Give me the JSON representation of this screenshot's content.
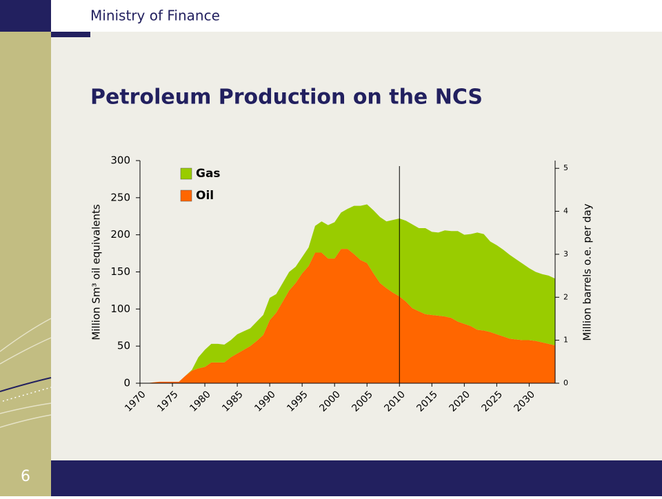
{
  "header": {
    "organization": "Ministry of Finance",
    "page_number": "6"
  },
  "chart_data": {
    "type": "stacked_area",
    "title": "Petroleum Production on the NCS",
    "ylabel": "Million Sm³ oil equivalents",
    "y2label": "Million barrels o.e. per day",
    "x": [
      1971,
      1972,
      1973,
      1974,
      1975,
      1976,
      1977,
      1978,
      1979,
      1980,
      1981,
      1982,
      1983,
      1984,
      1985,
      1986,
      1987,
      1988,
      1989,
      1990,
      1991,
      1992,
      1993,
      1994,
      1995,
      1996,
      1997,
      1998,
      1999,
      2000,
      2001,
      2002,
      2003,
      2004,
      2005,
      2006,
      2007,
      2008,
      2009,
      2010,
      2011,
      2012,
      2013,
      2014,
      2015,
      2016,
      2017,
      2018,
      2019,
      2020,
      2021,
      2022,
      2023,
      2024,
      2025,
      2026,
      2027,
      2028,
      2029,
      2030,
      2031,
      2032,
      2033,
      2034
    ],
    "series": [
      {
        "name": "Oil",
        "color": "#ff6600",
        "values": [
          0,
          1,
          2,
          2,
          2,
          2,
          10,
          17,
          20,
          22,
          28,
          28,
          28,
          35,
          40,
          45,
          50,
          57,
          65,
          85,
          95,
          110,
          125,
          135,
          148,
          158,
          176,
          176,
          168,
          168,
          181,
          181,
          174,
          166,
          162,
          148,
          135,
          128,
          122,
          117,
          110,
          101,
          97,
          93,
          92,
          91,
          90,
          88,
          83,
          80,
          77,
          72,
          71,
          69,
          66,
          63,
          60,
          59,
          58,
          58,
          57,
          55,
          53,
          51
        ]
      },
      {
        "name": "Gas",
        "color": "#99cc00",
        "values": [
          0,
          0,
          0,
          0,
          0,
          0,
          0,
          1,
          15,
          23,
          25,
          25,
          24,
          23,
          26,
          25,
          24,
          26,
          27,
          30,
          25,
          25,
          25,
          22,
          22,
          25,
          36,
          42,
          45,
          49,
          49,
          54,
          65,
          73,
          79,
          85,
          89,
          90,
          98,
          105,
          109,
          113,
          112,
          116,
          112,
          112,
          116,
          117,
          122,
          120,
          124,
          131,
          130,
          122,
          120,
          117,
          113,
          108,
          103,
          97,
          93,
          92,
          92,
          90
        ]
      }
    ],
    "xlim": [
      1970,
      2034
    ],
    "xticks": [
      1970,
      1975,
      1980,
      1985,
      1990,
      1995,
      2000,
      2005,
      2010,
      2015,
      2020,
      2025,
      2030
    ],
    "ylim": [
      0,
      300
    ],
    "yticks": [
      0,
      50,
      100,
      150,
      200,
      250,
      300
    ],
    "y2lim": [
      0,
      5.18
    ],
    "y2ticks": [
      0,
      1,
      2,
      3,
      4,
      5
    ]
  }
}
